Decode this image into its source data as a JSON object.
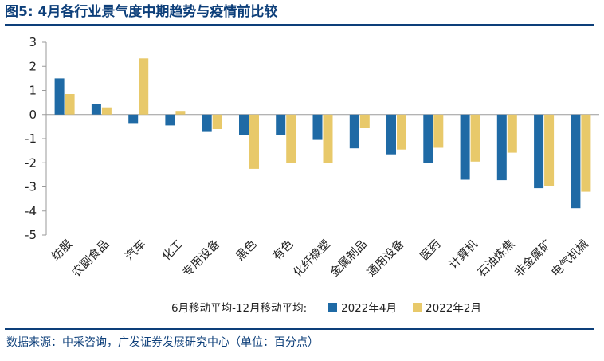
{
  "figure": {
    "title": "图5:  4月各行业景气度中期趋势与疫情前比较",
    "source": "数据来源：中采咨询，广发证券发展研究中心（单位：百分点）"
  },
  "chart_data": {
    "type": "bar",
    "title": "4月各行业景气度中期趋势与疫情前比较",
    "xlabel": "",
    "ylabel": "",
    "unit": "百分点",
    "ylim": [
      -5,
      3
    ],
    "yticks": [
      3,
      2,
      1,
      0,
      -1,
      -2,
      -3,
      -4,
      -5
    ],
    "grid": false,
    "legend_title": "6月移动平均-12月移动平均:",
    "legend_position": "bottom",
    "categories": [
      "纺服",
      "农副食品",
      "汽车",
      "化工",
      "专用设备",
      "黑色",
      "有色",
      "化纤橡塑",
      "金属制品",
      "通用设备",
      "医药",
      "计算机",
      "石油炼焦",
      "非金属矿",
      "电气机械"
    ],
    "series": [
      {
        "name": "2022年4月",
        "color": "#1f6aa5",
        "values": [
          1.5,
          0.45,
          -0.35,
          -0.45,
          -0.72,
          -0.85,
          -0.85,
          -1.05,
          -1.4,
          -1.65,
          -2.0,
          -2.7,
          -2.72,
          -3.05,
          -3.88
        ]
      },
      {
        "name": "2022年2月",
        "color": "#e8c96a",
        "values": [
          0.85,
          0.3,
          2.33,
          0.15,
          -0.6,
          -2.25,
          -2.0,
          -2.0,
          -0.55,
          -1.45,
          -1.38,
          -1.95,
          -1.58,
          -2.95,
          -3.2
        ]
      }
    ]
  }
}
